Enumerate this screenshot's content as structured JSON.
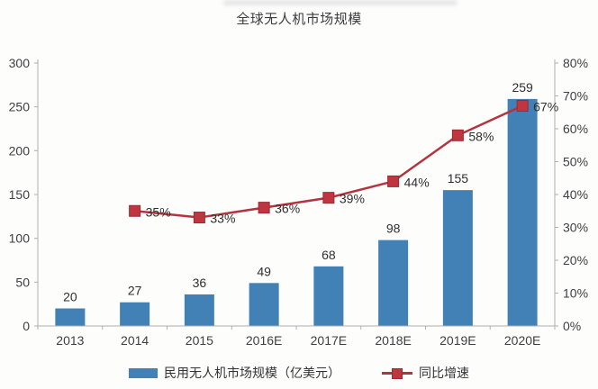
{
  "page": {
    "title": "全球无人机市场规模"
  },
  "chart_data": {
    "type": "bar+line combo",
    "title": "全球无人机市场规模",
    "categories": [
      "2013",
      "2014",
      "2015",
      "2016E",
      "2017E",
      "2018E",
      "2019E",
      "2020E"
    ],
    "series": [
      {
        "name": "民用无人机市场规模（亿美元）",
        "type": "bar",
        "axis": "left",
        "color": "#4181b5",
        "values": [
          20,
          27,
          36,
          49,
          68,
          98,
          155,
          259
        ],
        "data_labels": [
          "20",
          "27",
          "36",
          "49",
          "68",
          "98",
          "155",
          "259"
        ]
      },
      {
        "name": "同比增速",
        "type": "line",
        "axis": "right",
        "color": "#b5333f",
        "marker": "square",
        "marker_fill": "#bf3640",
        "marker_stroke": "#992a32",
        "unit": "%",
        "values": [
          null,
          35,
          33,
          36,
          39,
          44,
          58,
          67
        ],
        "data_labels": [
          "",
          "35%",
          "33%",
          "36%",
          "39%",
          "44%",
          "58%",
          "67%"
        ]
      }
    ],
    "left_axis": {
      "min": 0,
      "max": 300,
      "step": 50,
      "ticks": [
        "0",
        "50",
        "100",
        "150",
        "200",
        "250",
        "300"
      ]
    },
    "right_axis": {
      "min": 0,
      "max": 80,
      "step": 10,
      "ticks": [
        "0%",
        "10%",
        "20%",
        "30%",
        "40%",
        "50%",
        "60%",
        "70%",
        "80%"
      ]
    },
    "grid": false,
    "legend_position": "bottom",
    "axis_color": "#b0b0b0"
  }
}
